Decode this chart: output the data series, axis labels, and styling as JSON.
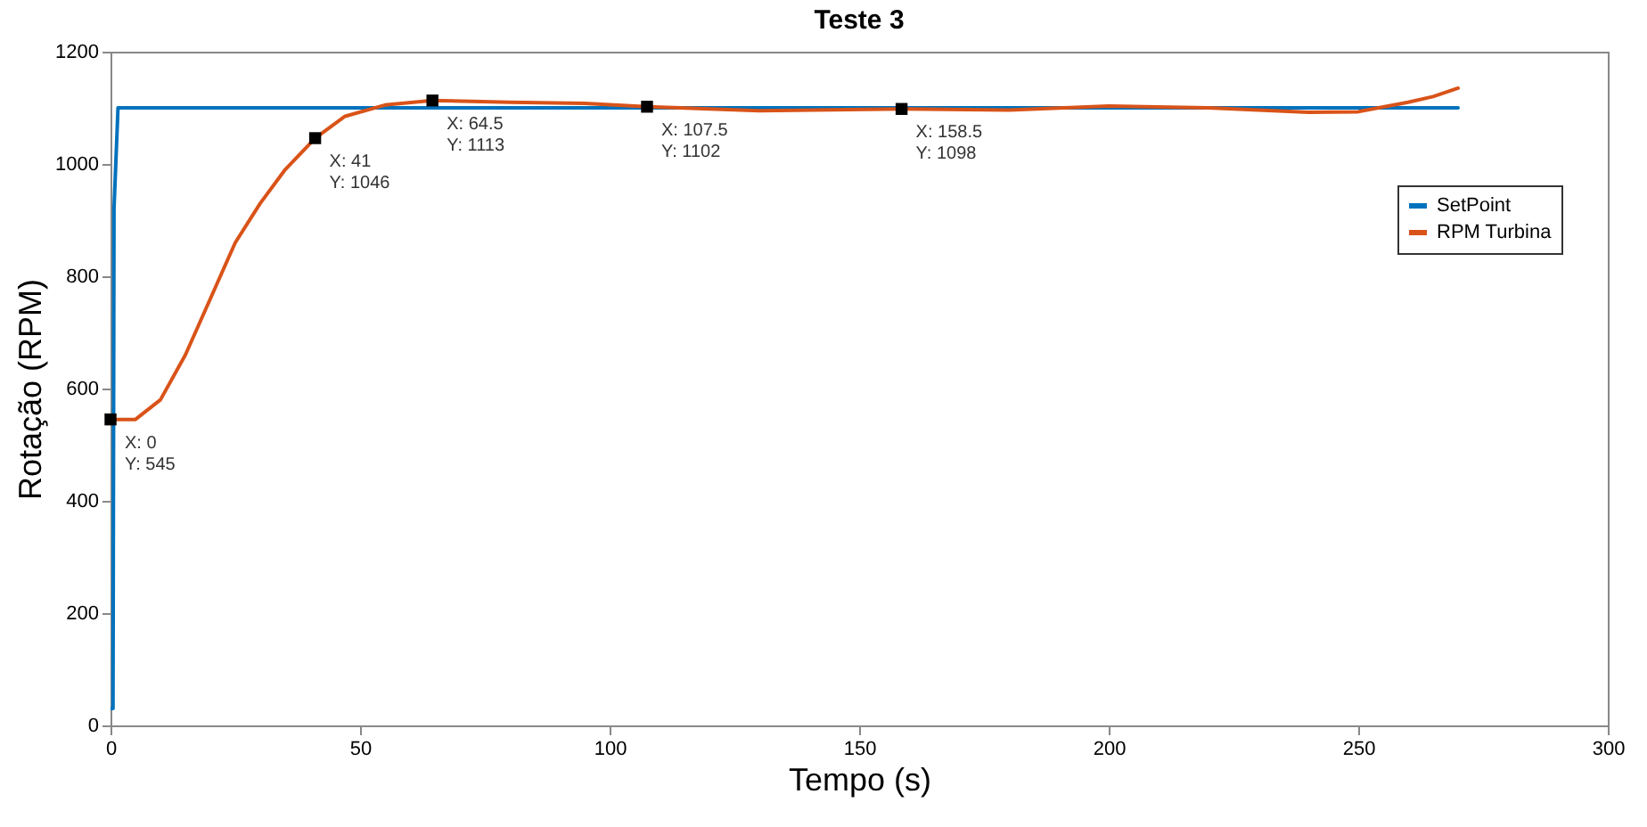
{
  "chart_data": {
    "type": "line",
    "title": "Teste 3",
    "xlabel": "Tempo (s)",
    "ylabel": "Rotação (RPM)",
    "xlim": [
      0,
      300
    ],
    "xticks": [
      0,
      50,
      100,
      150,
      200,
      250,
      300
    ],
    "ylim": [
      0,
      1200
    ],
    "yticks": [
      0,
      200,
      400,
      600,
      800,
      1000,
      1200
    ],
    "grid": false,
    "legend": "right",
    "series": [
      {
        "name": "SetPoint",
        "color": "#0072bd",
        "x": [
          0,
          0.5,
          0.7,
          1.5,
          270
        ],
        "values": [
          30,
          30,
          920,
          1100,
          1100
        ]
      },
      {
        "name": "RPM Turbina",
        "color": "#d95319",
        "x": [
          0,
          5,
          10,
          15,
          20,
          25,
          30,
          35,
          41,
          47,
          55,
          64.5,
          80,
          95,
          107.5,
          130,
          158.5,
          180,
          200,
          220,
          240,
          250,
          260,
          265,
          270
        ],
        "values": [
          545,
          545,
          580,
          660,
          760,
          860,
          930,
          990,
          1046,
          1085,
          1105,
          1113,
          1110,
          1108,
          1102,
          1095,
          1098,
          1096,
          1103,
          1100,
          1092,
          1093,
          1110,
          1120,
          1135
        ]
      }
    ],
    "annotations": [
      {
        "text": "X: 0\nY: 545",
        "x": 0,
        "y": 545
      },
      {
        "text": "X: 41\nY: 1046",
        "x": 41,
        "y": 1046
      },
      {
        "text": "X: 64.5\nY: 1113",
        "x": 64.5,
        "y": 1113
      },
      {
        "text": "X: 107.5\nY: 1102",
        "x": 107.5,
        "y": 1102
      },
      {
        "text": "X: 158.5\nY: 1098",
        "x": 158.5,
        "y": 1098
      }
    ]
  }
}
